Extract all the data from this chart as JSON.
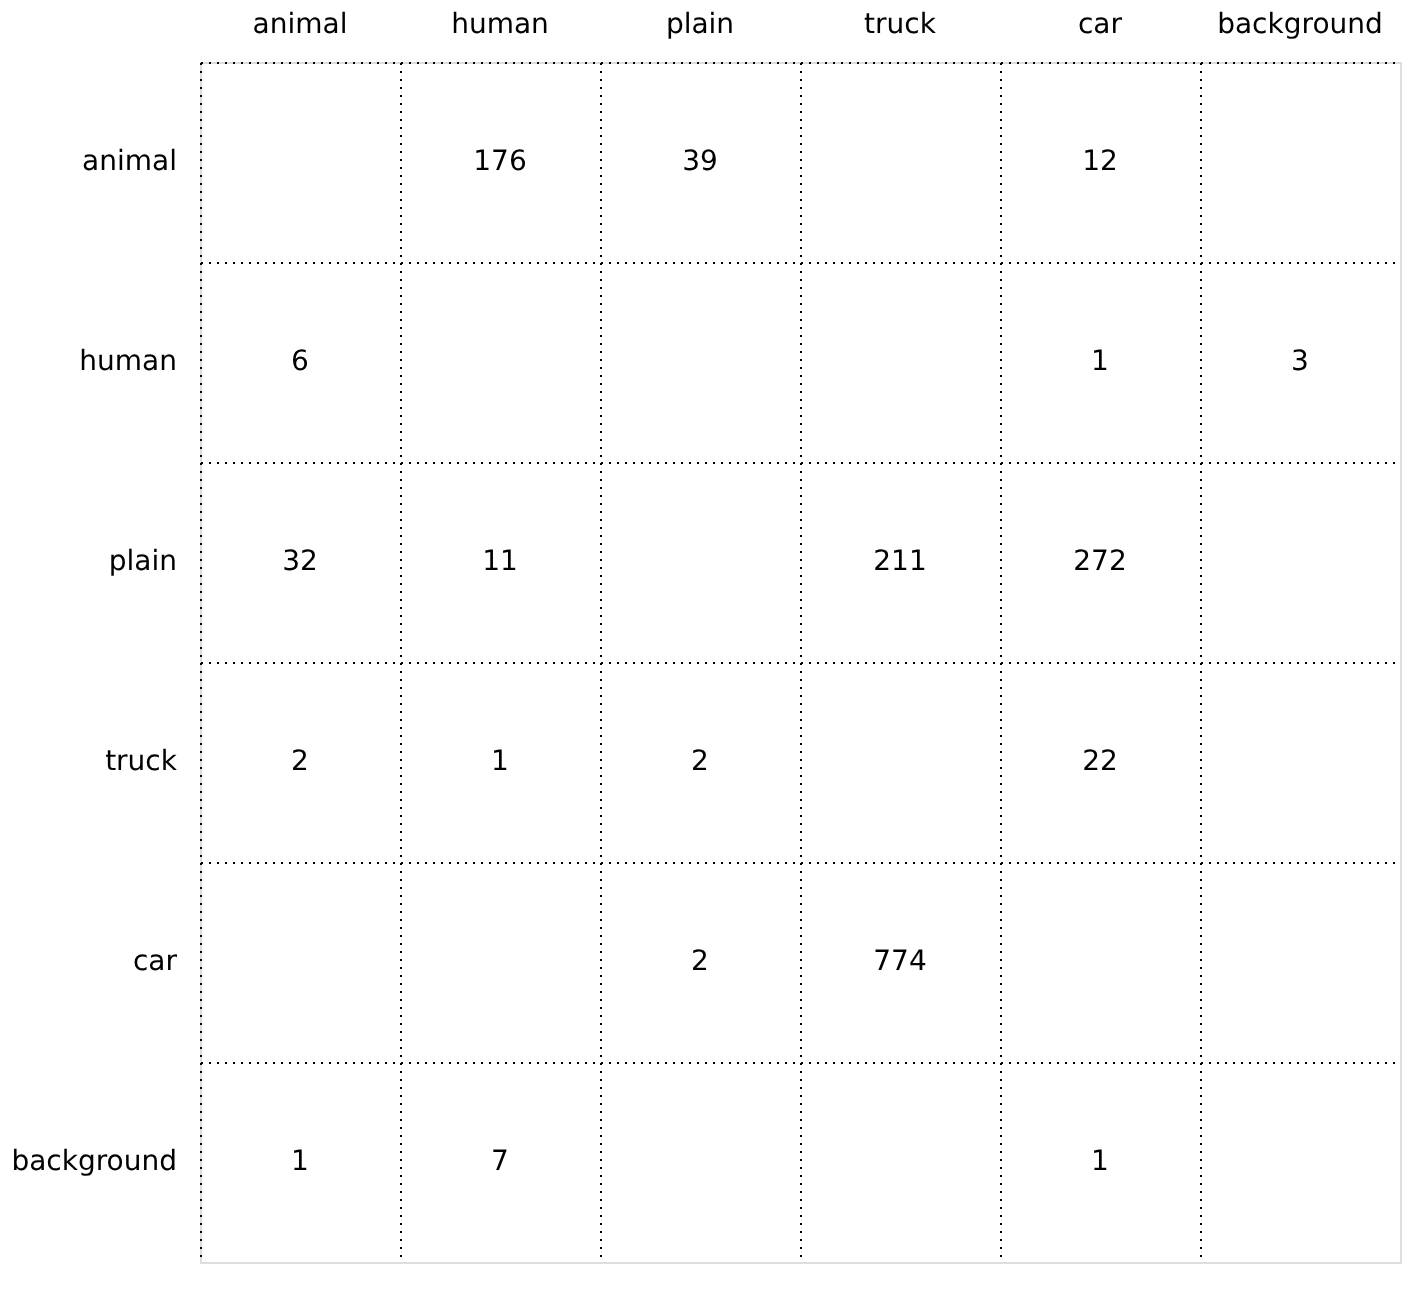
{
  "chart_data": {
    "type": "heatmap",
    "categories": [
      "animal",
      "human",
      "plain",
      "truck",
      "car",
      "background"
    ],
    "y_categories": [
      "animal",
      "human",
      "plain",
      "truck",
      "car",
      "background"
    ],
    "cells": [
      [
        null,
        176,
        39,
        null,
        12,
        null
      ],
      [
        6,
        null,
        null,
        null,
        1,
        3
      ],
      [
        32,
        11,
        null,
        211,
        272,
        null
      ],
      [
        2,
        1,
        2,
        null,
        22,
        null
      ],
      [
        null,
        null,
        2,
        774,
        null,
        null
      ],
      [
        1,
        7,
        null,
        null,
        1,
        null
      ]
    ],
    "data_labels": true,
    "grid": true
  }
}
